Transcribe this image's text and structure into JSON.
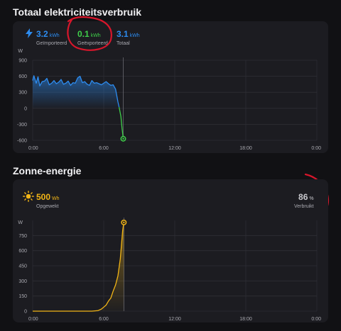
{
  "energy": {
    "title": "Totaal elektriciteitsverbruik",
    "stats": [
      {
        "value": "3.2",
        "unit": "kWh",
        "label": "Geïmporteerd",
        "color": "#2d8cf0"
      },
      {
        "value": "0.1",
        "unit": "kWh",
        "label": "Geëxporteerd",
        "color": "#3fcf4a"
      },
      {
        "value": "3.1",
        "unit": "kWh",
        "label": "Totaal",
        "color": "#2d8cf0"
      }
    ],
    "bolt_icon": "lightning-bolt-icon"
  },
  "solar": {
    "title": "Zonne-energie",
    "produced": {
      "value": "500",
      "unit": "Wh",
      "label": "Opgewekt",
      "color": "#f2b516"
    },
    "consumed": {
      "value": "86",
      "unit": "%",
      "label": "Verbruikt"
    },
    "sun_icon": "sun-icon"
  },
  "annotation_color": "#d8162b",
  "chart_data": [
    {
      "type": "area",
      "title": "",
      "ylabel": "W",
      "yticks": [
        "900",
        "600",
        "300",
        "0",
        "-300",
        "-600"
      ],
      "ylim": [
        -600,
        900
      ],
      "xticks": [
        "0:00",
        "6:00",
        "12:00",
        "18:00",
        "0:00"
      ],
      "xlim": [
        0,
        24
      ],
      "grid": true,
      "series": [
        {
          "color": "#2d8cf0",
          "x": [
            0,
            0.1,
            0.3,
            0.45,
            0.6,
            0.8,
            1.0,
            1.2,
            1.4,
            1.6,
            1.8,
            2.0,
            2.2,
            2.4,
            2.6,
            2.8,
            3.0,
            3.2,
            3.4,
            3.6,
            3.8,
            4.0,
            4.2,
            4.4,
            4.6,
            4.8,
            5.0,
            5.2,
            5.4,
            5.6,
            5.8,
            6.0,
            6.2,
            6.4,
            6.6,
            6.8,
            7.0,
            7.2,
            7.3
          ],
          "y": [
            520,
            610,
            470,
            590,
            420,
            500,
            510,
            560,
            440,
            470,
            520,
            460,
            490,
            540,
            450,
            470,
            510,
            430,
            480,
            470,
            570,
            600,
            480,
            500,
            450,
            430,
            520,
            470,
            480,
            460,
            440,
            470,
            500,
            460,
            430,
            440,
            360,
            120,
            20
          ]
        },
        {
          "color": "#3fcf4a",
          "x": [
            7.3,
            7.45,
            7.55,
            7.65
          ],
          "y": [
            20,
            -150,
            -380,
            -570
          ]
        }
      ]
    },
    {
      "type": "area",
      "title": "",
      "ylabel": "W",
      "yticks": [
        "750",
        "600",
        "450",
        "300",
        "150",
        "0"
      ],
      "ylim": [
        0,
        900
      ],
      "xticks": [
        "0:00",
        "6:00",
        "12:00",
        "18:00",
        "0:00"
      ],
      "xlim": [
        0,
        24
      ],
      "grid": true,
      "series": [
        {
          "color": "#f2b516",
          "x": [
            0,
            5.0,
            5.5,
            5.8,
            6.0,
            6.2,
            6.4,
            6.6,
            6.8,
            7.0,
            7.2,
            7.4,
            7.6,
            7.7
          ],
          "y": [
            0,
            0,
            5,
            20,
            40,
            60,
            100,
            130,
            200,
            260,
            350,
            520,
            800,
            880
          ]
        }
      ]
    }
  ]
}
